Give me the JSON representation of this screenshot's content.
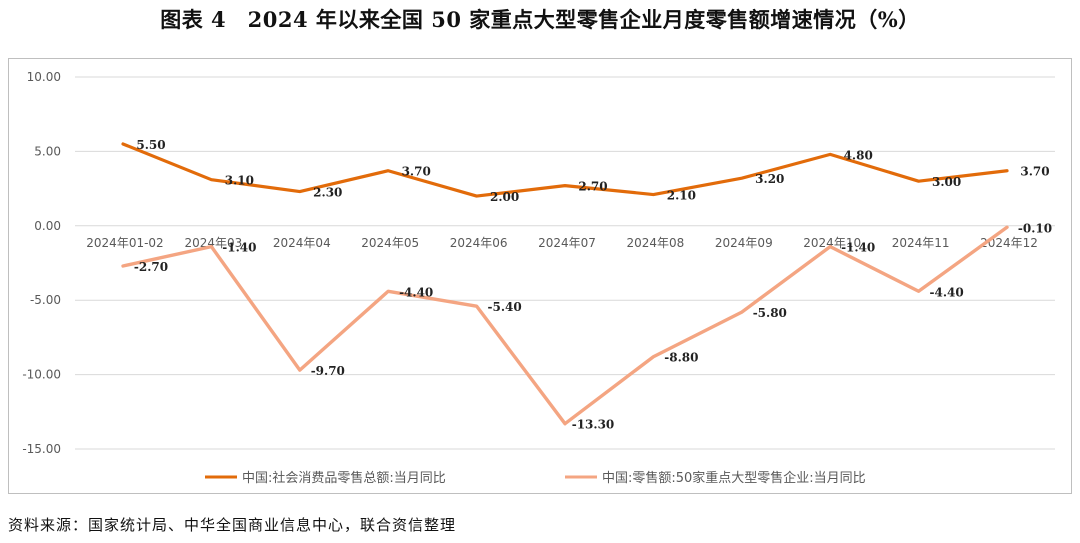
{
  "title": "图表 4　2024 年以来全国 50 家重点大型零售企业月度零售额增速情况（%）",
  "source": "资料来源：国家统计局、中华全国商业信息中心，联合资信整理",
  "chart_data": {
    "type": "line",
    "title": "",
    "xlabel": "",
    "ylabel": "",
    "categories": [
      "2024年01-02",
      "2024年03",
      "2024年04",
      "2024年05",
      "2024年06",
      "2024年07",
      "2024年08",
      "2024年09",
      "2024年10",
      "2024年11",
      "2024年12"
    ],
    "ylim": [
      -15,
      10
    ],
    "yticks": [
      "10.00",
      "5.00",
      "0.00",
      "-5.00",
      "-10.00",
      "-15.00"
    ],
    "grid": "horizontal",
    "legend_position": "bottom",
    "series": [
      {
        "name": "中国:社会消费品零售总额:当月同比",
        "color": "#e26b0a",
        "values": [
          5.5,
          3.1,
          2.3,
          3.7,
          2.0,
          2.7,
          2.1,
          3.2,
          4.8,
          3.0,
          3.7
        ],
        "labels": [
          "5.50",
          "3.10",
          "2.30",
          "3.70",
          "2.00",
          "2.70",
          "2.10",
          "3.20",
          "4.80",
          "3.00",
          "3.70"
        ]
      },
      {
        "name": "中国:零售额:50家重点大型零售企业:当月同比",
        "color": "#f4a582",
        "values": [
          -2.7,
          -1.4,
          -9.7,
          -4.4,
          -5.4,
          -13.3,
          -8.8,
          -5.8,
          -1.4,
          -4.4,
          -0.1
        ],
        "labels": [
          "-2.70",
          "-1.40",
          "-9.70",
          "-4.40",
          "-5.40",
          "-13.30",
          "-8.80",
          "-5.80",
          "-1.40",
          "-4.40",
          "-0.10"
        ]
      }
    ]
  }
}
